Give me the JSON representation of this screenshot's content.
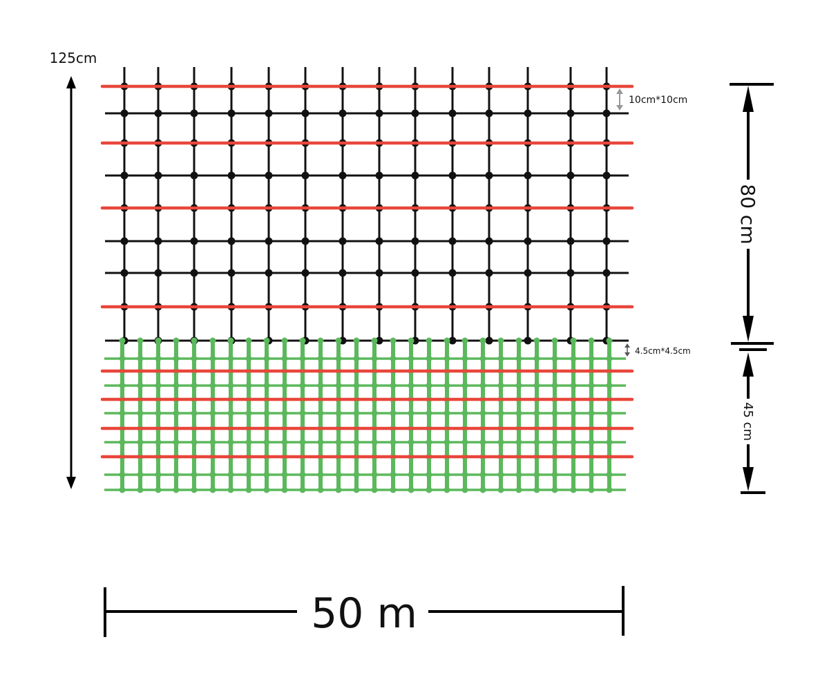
{
  "labels": {
    "total_height": "125cm",
    "upper_mesh": "10cm*10cm",
    "lower_mesh": "4.5cm*4.5cm",
    "upper_height": "80 cm",
    "lower_height": "45 cm",
    "length": "50 m"
  },
  "colors": {
    "upper_mesh": "#111111",
    "lower_mesh": "#5cb85c",
    "reinforcement": "#e8463a",
    "dimension": "#000000",
    "small_arrow": "#999999"
  }
}
